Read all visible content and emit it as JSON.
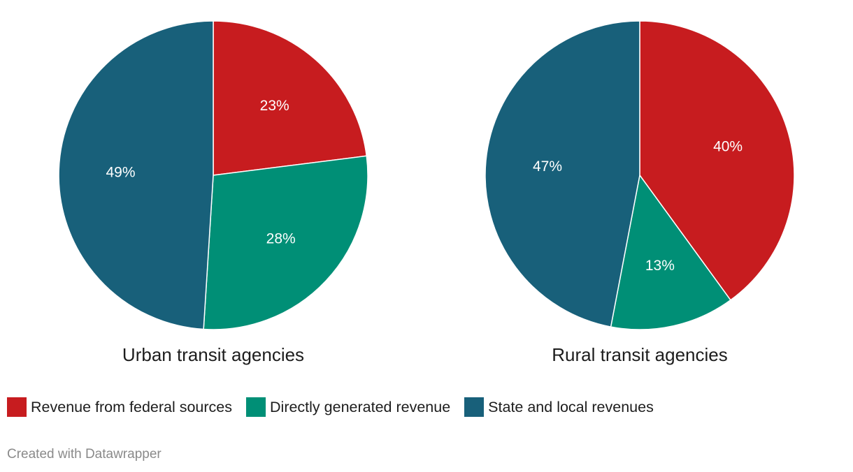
{
  "chart_data": [
    {
      "type": "pie",
      "title": "Urban transit agencies",
      "categories": [
        "Revenue from federal sources",
        "Directly generated revenue",
        "State and local revenues"
      ],
      "values": [
        23,
        28,
        49
      ],
      "labels": [
        "23%",
        "28%",
        "49%"
      ],
      "unit": "%",
      "start": "12 o'clock",
      "direction": "clockwise"
    },
    {
      "type": "pie",
      "title": "Rural transit agencies",
      "categories": [
        "Revenue from federal sources",
        "Directly generated revenue",
        "State and local revenues"
      ],
      "values": [
        40,
        13,
        47
      ],
      "labels": [
        "40%",
        "13%",
        "47%"
      ],
      "unit": "%",
      "start": "12 o'clock",
      "direction": "clockwise"
    }
  ],
  "legend": {
    "placement": "bottom-left",
    "items": [
      {
        "label": "Revenue from federal sources",
        "color": "#c71c1f"
      },
      {
        "label": "Directly generated revenue",
        "color": "#008f76"
      },
      {
        "label": "State and local revenues",
        "color": "#18607a"
      }
    ]
  },
  "colors": [
    "#c71c1f",
    "#008f76",
    "#18607a"
  ],
  "credit": "Created with Datawrapper"
}
